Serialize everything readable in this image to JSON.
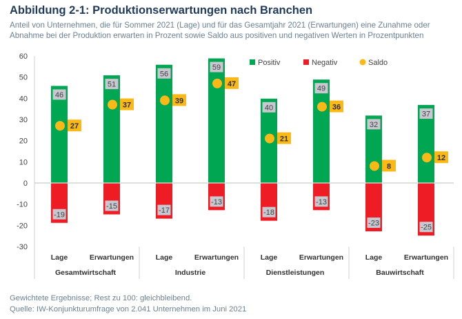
{
  "header": {
    "title": "Abbildung 2-1: Produktionserwartungen nach Branchen",
    "subtitle": "Anteil von Unternehmen, die für Sommer 2021 (Lage) und für das Gesamtjahr 2021 (Erwartungen) eine Zunahme oder Abnahme bei der Produktion erwarten in Prozent sowie Saldo aus positiven und negativen Werten in Prozentpunkten"
  },
  "footer": {
    "note": "Gewichtete Ergebnisse; Rest zu 100: gleichbleibend.",
    "source": "Quelle: IW-Konjunkturumfrage von 2.041 Unternehmen im Juni 2021"
  },
  "colors": {
    "positive": "#00a651",
    "negative": "#ee1c25",
    "saldo": "#fbb917",
    "label_box": "#c8c8d0",
    "grid": "#e4e4e4"
  },
  "chart_data": {
    "type": "bar",
    "ylim": [
      -30,
      60
    ],
    "yticks": [
      -30,
      -20,
      -10,
      0,
      10,
      20,
      30,
      40,
      50,
      60
    ],
    "grid": false,
    "legend_position": "top-right",
    "legend": [
      "Positiv",
      "Negativ",
      "Saldo"
    ],
    "groups": [
      "Gesamtwirtschaft",
      "Industrie",
      "Dienstleistungen",
      "Bauwirtschaft"
    ],
    "categories": [
      "Lage",
      "Erwartungen",
      "Lage",
      "Erwartungen",
      "Lage",
      "Erwartungen",
      "Lage",
      "Erwartungen"
    ],
    "series": [
      {
        "name": "Positiv",
        "values": [
          46,
          51,
          56,
          59,
          40,
          49,
          32,
          37
        ]
      },
      {
        "name": "Negativ",
        "values": [
          -19,
          -15,
          -17,
          -13,
          -18,
          -13,
          -23,
          -25
        ]
      },
      {
        "name": "Saldo",
        "values": [
          27,
          37,
          39,
          47,
          21,
          36,
          8,
          12
        ]
      }
    ]
  }
}
